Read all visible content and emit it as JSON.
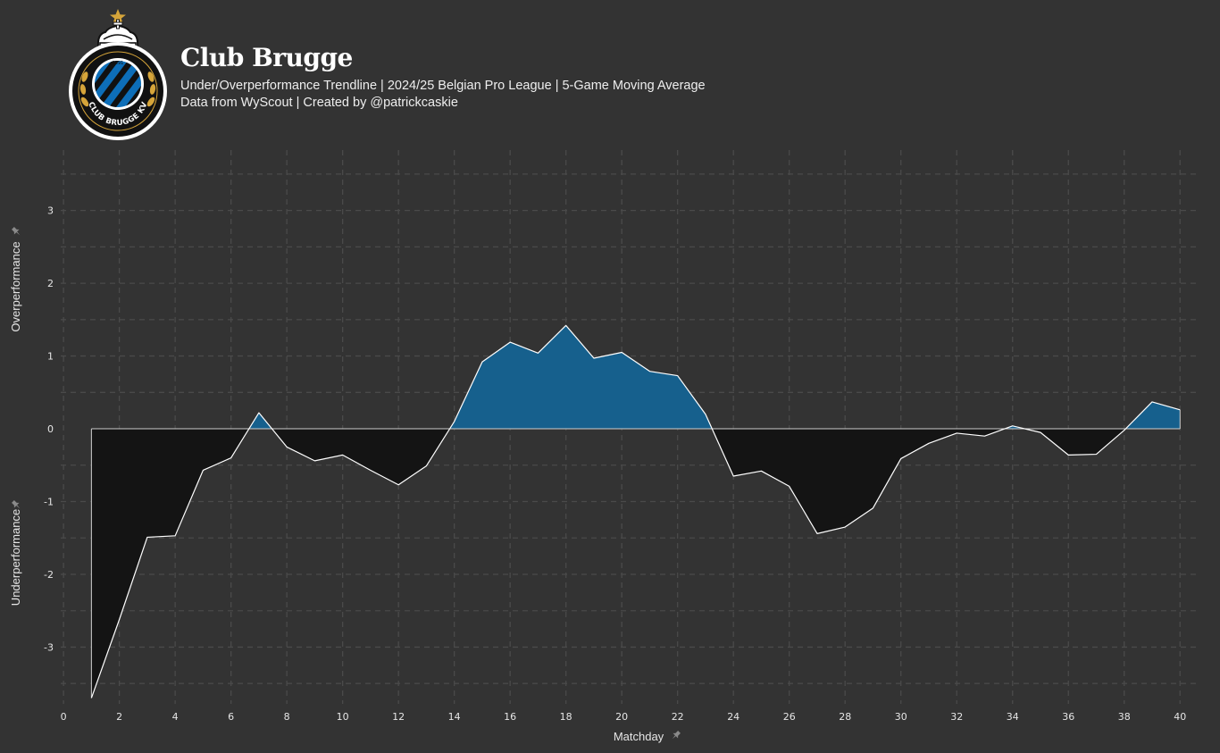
{
  "header": {
    "title": "Club Brugge",
    "subtitle": "Under/Overperformance Trendline | 2024/25 Belgian Pro League | 5-Game Moving Average",
    "caption": "Data from WyScout | Created by @patrickcaskie",
    "logo": {
      "icon": "club-brugge-crest-icon",
      "text": "CLUB BRUGGE KV",
      "year": "1891"
    }
  },
  "chart_data": {
    "type": "area",
    "x": [
      1,
      2,
      3,
      4,
      5,
      6,
      7,
      8,
      9,
      10,
      11,
      12,
      13,
      14,
      15,
      16,
      17,
      18,
      19,
      20,
      21,
      22,
      23,
      24,
      25,
      26,
      27,
      28,
      29,
      30,
      31,
      32,
      33,
      34,
      35,
      36,
      37,
      38,
      39,
      40
    ],
    "values": [
      -3.7,
      -2.62,
      -1.49,
      -1.47,
      -0.57,
      -0.4,
      0.22,
      -0.25,
      -0.44,
      -0.36,
      -0.57,
      -0.77,
      -0.51,
      0.1,
      0.92,
      1.19,
      1.04,
      1.42,
      0.97,
      1.05,
      0.79,
      0.73,
      0.2,
      -0.65,
      -0.58,
      -0.79,
      -1.44,
      -1.35,
      -1.09,
      -0.41,
      -0.2,
      -0.06,
      -0.1,
      0.04,
      -0.05,
      -0.36,
      -0.35,
      -0.02,
      0.37,
      0.26
    ],
    "baseline": 0,
    "xlabel": "Matchday",
    "ylabel_upper": "Overperformance",
    "ylabel_lower": "Underperformance",
    "xticks": [
      0,
      2,
      4,
      6,
      8,
      10,
      12,
      14,
      16,
      18,
      20,
      22,
      24,
      26,
      28,
      30,
      32,
      34,
      36,
      38,
      40
    ],
    "yticks": [
      -3,
      -2,
      -1,
      0,
      1,
      2,
      3
    ],
    "xlim": [
      -0.1,
      40.6
    ],
    "ylim": [
      -3.78,
      3.83
    ],
    "grid": true,
    "colors": {
      "background": "#333333",
      "over_fill": "#16608d",
      "under_fill": "#141414",
      "line": "#ffffff",
      "grid": "#4a4a4a",
      "pin_icon": "#8a8a8a"
    },
    "icons": {
      "axis_marker": "pin-icon"
    }
  }
}
